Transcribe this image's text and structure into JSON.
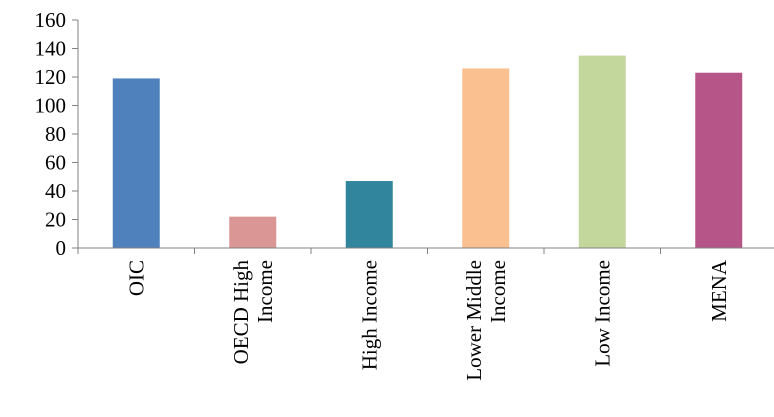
{
  "chart_data": {
    "type": "bar",
    "categories": [
      [
        "OIC"
      ],
      [
        "OECD High",
        "Income"
      ],
      [
        "High Income"
      ],
      [
        "Lower Middle",
        "Income"
      ],
      [
        "Low Income"
      ],
      [
        "MENA"
      ]
    ],
    "values": [
      119,
      22,
      47,
      126,
      135,
      123
    ],
    "colors": [
      "#4F81BD",
      "#D99694",
      "#31859C",
      "#FAC090",
      "#C3D69B",
      "#B65587"
    ],
    "ylim": [
      0,
      160
    ],
    "yticks": [
      0,
      20,
      40,
      60,
      80,
      100,
      120,
      140,
      160
    ],
    "title": "",
    "xlabel": "",
    "ylabel": "",
    "grid": false,
    "legend": "none"
  }
}
